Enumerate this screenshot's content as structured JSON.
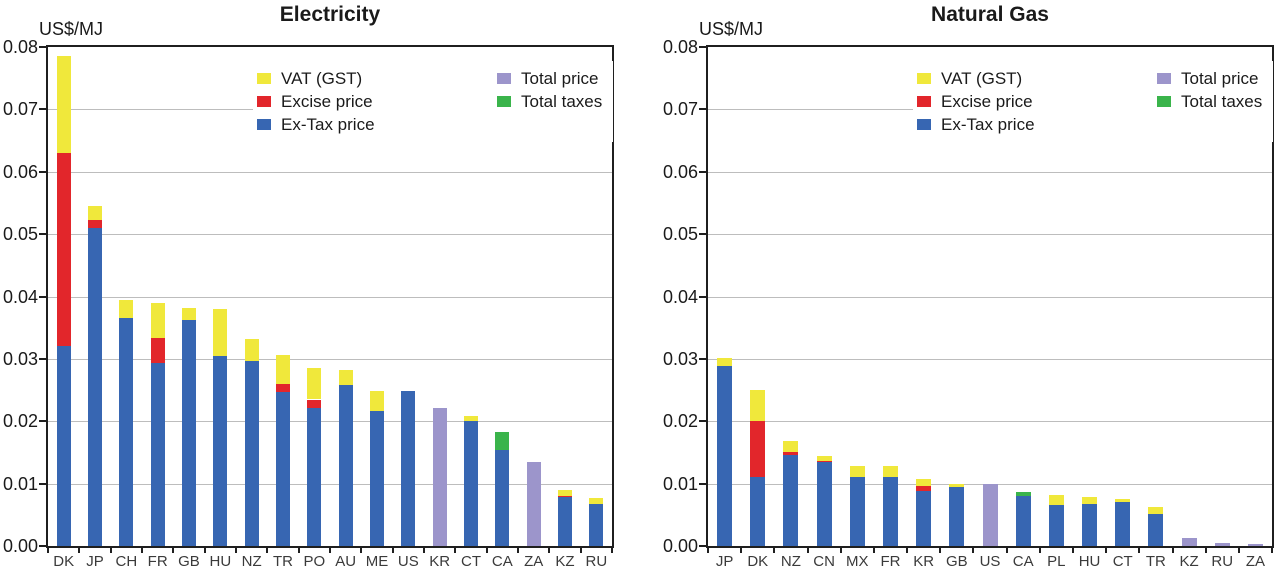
{
  "page": {
    "background": "#ffffff"
  },
  "colors": {
    "vat": "#F0E83B",
    "excise": "#E2262B",
    "ex_tax": "#3766B2",
    "total_price": "#9C95CB",
    "total_taxes": "#3AB44B",
    "gridline": "#BDBDBD",
    "axis": "#1F1F1F"
  },
  "chart_data": [
    {
      "type": "bar",
      "stacked": true,
      "title": "Electricity",
      "ylabel": "US$/MJ",
      "xlabel": "",
      "ylim": [
        0,
        0.08
      ],
      "ytick_step": 0.01,
      "y_tick_labels": [
        "0.00",
        "0.01",
        "0.02",
        "0.03",
        "0.04",
        "0.05",
        "0.06",
        "0.07",
        "0.08"
      ],
      "grid": "horizontal",
      "legend_position": "top-right-inside",
      "legend": [
        {
          "name": "VAT (GST)",
          "color": "#F0E83B"
        },
        {
          "name": "Excise price",
          "color": "#E2262B"
        },
        {
          "name": "Ex-Tax price",
          "color": "#3766B2"
        },
        {
          "name": "Total price",
          "color": "#9C95CB"
        },
        {
          "name": "Total taxes",
          "color": "#3AB44B"
        }
      ],
      "categories": [
        "DK",
        "JP",
        "CH",
        "FR",
        "GB",
        "HU",
        "NZ",
        "TR",
        "PO",
        "AU",
        "ME",
        "US",
        "KR",
        "CT",
        "CA",
        "ZA",
        "KZ",
        "RU"
      ],
      "series": [
        {
          "name": "Ex-Tax price",
          "key": "ex_tax",
          "color": "#3766B2",
          "values": [
            0.032,
            0.051,
            0.0366,
            0.0294,
            0.0362,
            0.0304,
            0.0296,
            0.0247,
            0.0221,
            0.0258,
            0.0217,
            0.0249,
            0,
            0.02,
            0.0154,
            0,
            0.0078,
            0.0067
          ]
        },
        {
          "name": "Excise price",
          "key": "excise",
          "color": "#E2262B",
          "values": [
            0.031,
            0.0012,
            0,
            0.0039,
            0,
            0,
            0,
            0.0013,
            0.0014,
            0,
            0,
            0,
            0,
            0,
            0,
            0,
            0.0002,
            0
          ]
        },
        {
          "name": "VAT (GST)",
          "key": "vat",
          "color": "#F0E83B",
          "values": [
            0.0155,
            0.0023,
            0.0028,
            0.0057,
            0.0019,
            0.0076,
            0.0036,
            0.0047,
            0.0051,
            0.0025,
            0.0032,
            0,
            0,
            0.0009,
            0,
            0,
            0.001,
            0.001
          ]
        },
        {
          "name": "Total price",
          "key": "total_price",
          "color": "#9C95CB",
          "values": [
            0,
            0,
            0,
            0,
            0,
            0,
            0,
            0,
            0,
            0,
            0,
            0,
            0.0221,
            0,
            0,
            0.0135,
            0,
            0
          ]
        },
        {
          "name": "Total taxes",
          "key": "total_taxes",
          "color": "#3AB44B",
          "values": [
            0,
            0,
            0,
            0,
            0,
            0,
            0,
            0,
            0,
            0,
            0,
            0,
            0,
            0,
            0.0029,
            0,
            0,
            0
          ]
        }
      ]
    },
    {
      "type": "bar",
      "stacked": true,
      "title": "Natural Gas",
      "ylabel": "US$/MJ",
      "xlabel": "",
      "ylim": [
        0,
        0.08
      ],
      "ytick_step": 0.01,
      "y_tick_labels": [
        "0.00",
        "0.01",
        "0.02",
        "0.03",
        "0.04",
        "0.05",
        "0.06",
        "0.07",
        "0.08"
      ],
      "grid": "horizontal",
      "legend_position": "top-right-inside",
      "legend": [
        {
          "name": "VAT (GST)",
          "color": "#F0E83B"
        },
        {
          "name": "Excise price",
          "color": "#E2262B"
        },
        {
          "name": "Ex-Tax price",
          "color": "#3766B2"
        },
        {
          "name": "Total price",
          "color": "#9C95CB"
        },
        {
          "name": "Total taxes",
          "color": "#3AB44B"
        }
      ],
      "categories": [
        "JP",
        "DK",
        "NZ",
        "CN",
        "MX",
        "FR",
        "KR",
        "GB",
        "US",
        "CA",
        "PL",
        "HU",
        "CT",
        "TR",
        "KZ",
        "RU",
        "ZA"
      ],
      "series": [
        {
          "name": "Ex-Tax price",
          "key": "ex_tax",
          "color": "#3766B2",
          "values": [
            0.0288,
            0.011,
            0.0146,
            0.0134,
            0.0111,
            0.011,
            0.0089,
            0.0094,
            0,
            0.008,
            0.0066,
            0.0068,
            0.0071,
            0.0052,
            0,
            0,
            0
          ]
        },
        {
          "name": "Excise price",
          "key": "excise",
          "color": "#E2262B",
          "values": [
            0,
            0.009,
            0.0004,
            0.0003,
            0,
            0,
            0.0008,
            0,
            0,
            0,
            0,
            0,
            0,
            0,
            0,
            0,
            0
          ]
        },
        {
          "name": "VAT (GST)",
          "key": "vat",
          "color": "#F0E83B",
          "values": [
            0.0013,
            0.005,
            0.0018,
            0.0008,
            0.0018,
            0.0018,
            0.001,
            0.0005,
            0,
            0,
            0.0015,
            0.0011,
            0.0005,
            0.0011,
            0,
            0,
            0
          ]
        },
        {
          "name": "Total price",
          "key": "total_price",
          "color": "#9C95CB",
          "values": [
            0,
            0,
            0,
            0,
            0,
            0,
            0,
            0,
            0.0099,
            0,
            0,
            0,
            0,
            0,
            0.0013,
            0.0005,
            0.0004
          ]
        },
        {
          "name": "Total taxes",
          "key": "total_taxes",
          "color": "#3AB44B",
          "values": [
            0,
            0,
            0,
            0,
            0,
            0,
            0,
            0,
            0,
            0.0007,
            0,
            0,
            0,
            0,
            0,
            0,
            0
          ]
        }
      ]
    }
  ]
}
